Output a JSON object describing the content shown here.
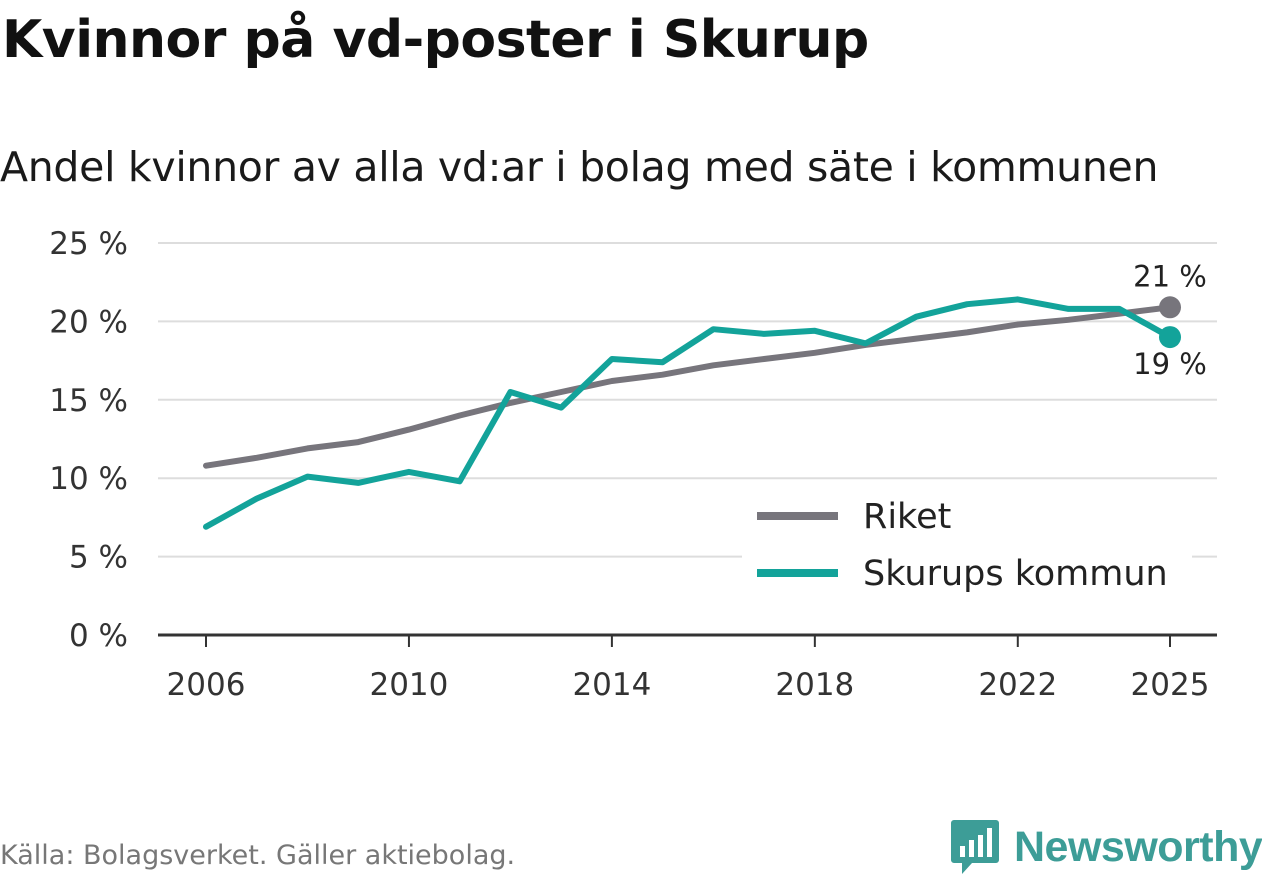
{
  "header": {
    "title": "Kvinnor på vd-poster i Skurup",
    "subtitle": "Andel kvinnor av alla vd:ar i bolag med säte i kommunen"
  },
  "footer": {
    "source": "Källa: Bolagsverket. Gäller aktiebolag.",
    "brand": "Newsworthy",
    "brand_icon": "bar-chart-icon"
  },
  "colors": {
    "riket": "#77757c",
    "skurup": "#13a39a",
    "grid": "#dddddd",
    "axis": "#333333",
    "brand": "#3d9d97"
  },
  "chart_data": {
    "type": "line",
    "title": "Kvinnor på vd-poster i Skurup",
    "subtitle": "Andel kvinnor av alla vd:ar i bolag med säte i kommunen",
    "xlabel": "",
    "ylabel": "",
    "x": [
      2006,
      2007,
      2008,
      2009,
      2010,
      2011,
      2012,
      2013,
      2014,
      2015,
      2016,
      2017,
      2018,
      2019,
      2020,
      2021,
      2022,
      2023,
      2024,
      2025
    ],
    "x_ticks": [
      2006,
      2010,
      2014,
      2018,
      2022,
      2025
    ],
    "x_tick_labels": [
      "2006",
      "2010",
      "2014",
      "2018",
      "2022",
      "2025"
    ],
    "ylim": [
      0,
      25
    ],
    "y_ticks": [
      0,
      5,
      10,
      15,
      20,
      25
    ],
    "y_tick_labels": [
      "0 %",
      "5 %",
      "10 %",
      "15 %",
      "20 %",
      "25 %"
    ],
    "grid": true,
    "legend_position": "bottom-right",
    "series": [
      {
        "name": "Riket",
        "color": "#77757c",
        "values": [
          10.8,
          11.3,
          11.9,
          12.3,
          13.1,
          14.0,
          14.8,
          15.5,
          16.2,
          16.6,
          17.2,
          17.6,
          18.0,
          18.5,
          18.9,
          19.3,
          19.8,
          20.1,
          20.5,
          20.9
        ],
        "end_label": "21 %"
      },
      {
        "name": "Skurups kommun",
        "color": "#13a39a",
        "values": [
          6.9,
          8.7,
          10.1,
          9.7,
          10.4,
          9.8,
          15.5,
          14.5,
          17.6,
          17.4,
          19.5,
          19.2,
          19.4,
          18.6,
          20.3,
          21.1,
          21.4,
          20.8,
          20.8,
          19.0
        ],
        "end_label": "19 %"
      }
    ]
  }
}
